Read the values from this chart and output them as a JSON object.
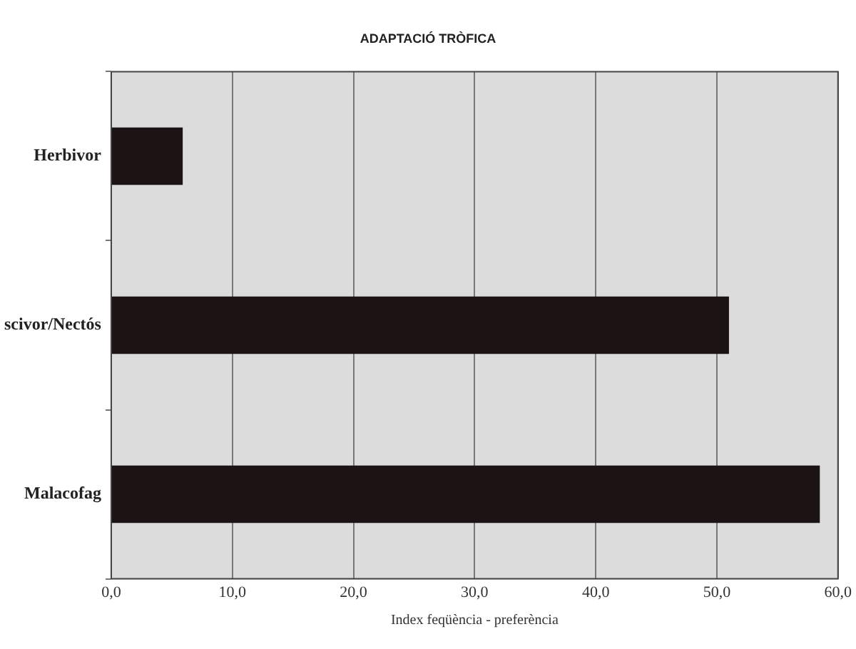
{
  "chart_data": {
    "type": "bar",
    "orientation": "horizontal",
    "title": "ADAPTACIÓ TRÒFICA",
    "xlabel": "Index feqüència - preferència",
    "categories": [
      "Herbivor",
      "scivor/Nectós",
      "Malacofag"
    ],
    "values": [
      5.9,
      51.0,
      58.5
    ],
    "color": "#1c1414",
    "xlim": [
      0,
      60
    ],
    "xticks": [
      {
        "value": 0,
        "label": "0,0"
      },
      {
        "value": 10,
        "label": "10,0"
      },
      {
        "value": 20,
        "label": "20,0"
      },
      {
        "value": 30,
        "label": "30,0"
      },
      {
        "value": 40,
        "label": "40,0"
      },
      {
        "value": 50,
        "label": "50,0"
      },
      {
        "value": 60,
        "label": "60,0"
      }
    ],
    "grid": "x",
    "legend": false
  }
}
